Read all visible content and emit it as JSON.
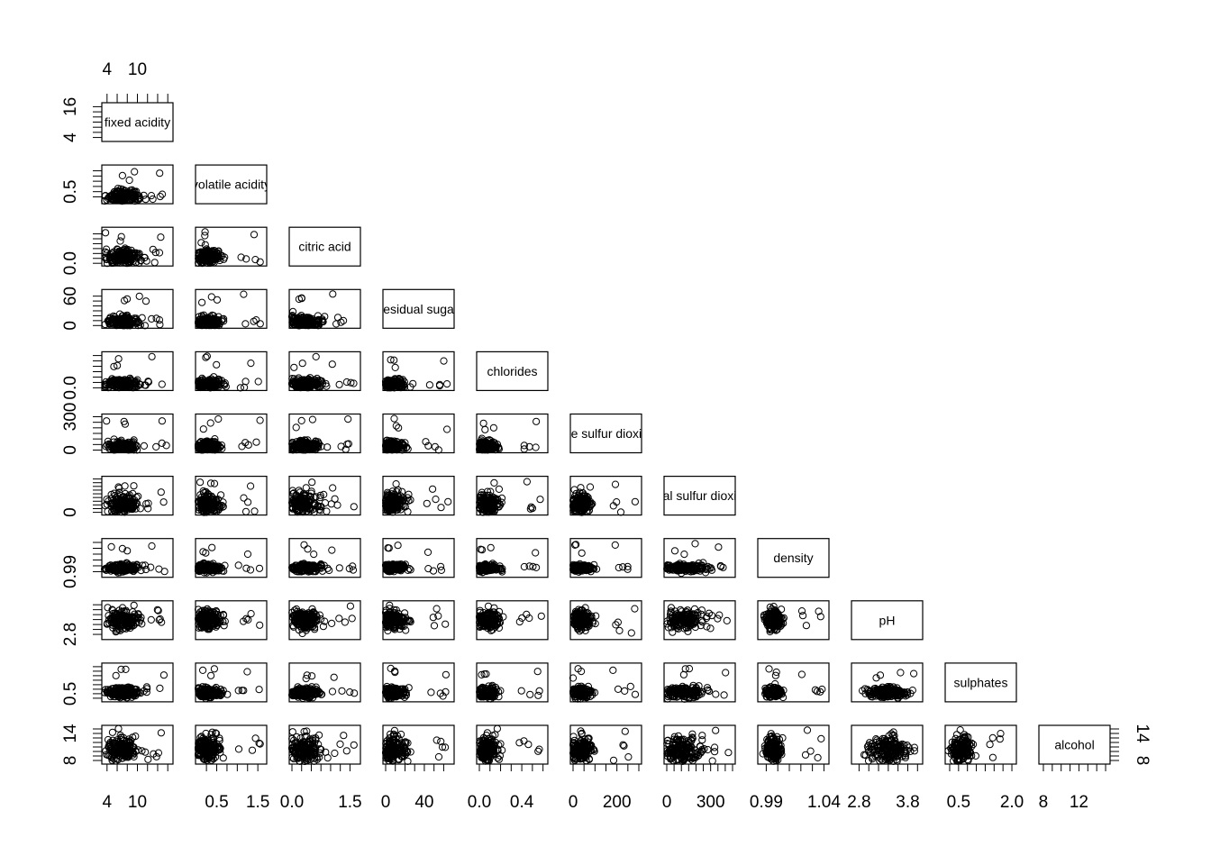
{
  "chart_data": {
    "type": "scatter",
    "layout": "pairs-lower-triangle",
    "title": "",
    "variables": [
      {
        "name": "fixed acidity",
        "range": [
          3.5,
          16.5
        ],
        "bottom_ticks": [
          "4",
          "10"
        ],
        "bottom_tick_values": [
          4,
          10
        ],
        "top_ticks": [
          "4",
          "10"
        ],
        "top_tick_values": [
          4,
          10
        ],
        "left_ticks": [
          "4",
          "16"
        ],
        "left_tick_values": [
          4,
          16
        ],
        "minor_tick_step": 2
      },
      {
        "name": "volatile acidity",
        "range": [
          0.05,
          1.65
        ],
        "bottom_ticks": [
          "0.5",
          "1.5"
        ],
        "bottom_tick_values": [
          0.5,
          1.5
        ],
        "left_ticks": [
          "0.5"
        ],
        "left_tick_values": [
          0.5
        ],
        "minor_tick_step": 0.25
      },
      {
        "name": "citric acid",
        "range": [
          0,
          1.7
        ],
        "bottom_ticks": [
          "0.0",
          "1.5"
        ],
        "bottom_tick_values": [
          0.0,
          1.5
        ],
        "left_ticks": [
          "0.0"
        ],
        "left_tick_values": [
          0.0
        ],
        "minor_tick_step": 0.25
      },
      {
        "name": "residual sugar",
        "range": [
          0,
          68
        ],
        "bottom_ticks": [
          "0",
          "40"
        ],
        "bottom_tick_values": [
          0,
          40
        ],
        "left_ticks": [
          "0",
          "60"
        ],
        "left_tick_values": [
          0,
          60
        ],
        "minor_tick_step": 10
      },
      {
        "name": "chlorides",
        "range": [
          0,
          0.62
        ],
        "bottom_ticks": [
          "0.0",
          "0.4"
        ],
        "bottom_tick_values": [
          0.0,
          0.4
        ],
        "left_ticks": [
          "0.0"
        ],
        "left_tick_values": [
          0.0
        ],
        "minor_tick_step": 0.1
      },
      {
        "name": "free sulfur dioxide",
        "range": [
          0,
          300
        ],
        "bottom_ticks": [
          "0",
          "200"
        ],
        "bottom_tick_values": [
          0,
          200
        ],
        "left_ticks": [
          "0",
          "300"
        ],
        "left_tick_values": [
          0,
          300
        ],
        "minor_tick_step": 50
      },
      {
        "name": "total sulfur dioxide",
        "range": [
          0,
          450
        ],
        "bottom_ticks": [
          "0",
          "300"
        ],
        "bottom_tick_values": [
          0,
          300
        ],
        "left_ticks": [
          "0"
        ],
        "left_tick_values": [
          0
        ],
        "minor_tick_step": 50
      },
      {
        "name": "density",
        "range": [
          0.985,
          1.042
        ],
        "bottom_ticks": [
          "0.99",
          "1.04"
        ],
        "bottom_tick_values": [
          0.99,
          1.04
        ],
        "left_ticks": [
          "0.99"
        ],
        "left_tick_values": [
          0.99
        ],
        "minor_tick_step": 0.01
      },
      {
        "name": "pH",
        "range": [
          2.7,
          4.05
        ],
        "bottom_ticks": [
          "2.8",
          "3.8"
        ],
        "bottom_tick_values": [
          2.8,
          3.8
        ],
        "left_ticks": [
          "2.8"
        ],
        "left_tick_values": [
          2.8
        ],
        "minor_tick_step": 0.2
      },
      {
        "name": "sulphates",
        "range": [
          0.2,
          2.05
        ],
        "bottom_ticks": [
          "0.5",
          "2.0"
        ],
        "bottom_tick_values": [
          0.5,
          2.0
        ],
        "left_ticks": [
          "0.5"
        ],
        "left_tick_values": [
          0.5
        ],
        "minor_tick_step": 0.25
      },
      {
        "name": "alcohol",
        "range": [
          7.8,
          15.2
        ],
        "bottom_ticks": [
          "8",
          "12"
        ],
        "bottom_tick_values": [
          8,
          12
        ],
        "right_ticks": [
          "8",
          "14"
        ],
        "right_tick_values": [
          8,
          14
        ],
        "left_ticks": [
          "8",
          "14"
        ],
        "left_tick_values": [
          8,
          14
        ],
        "minor_tick_step": 1
      }
    ],
    "grid": false,
    "legend": "none",
    "marker": "open-circle",
    "marker_color": "#000000"
  }
}
